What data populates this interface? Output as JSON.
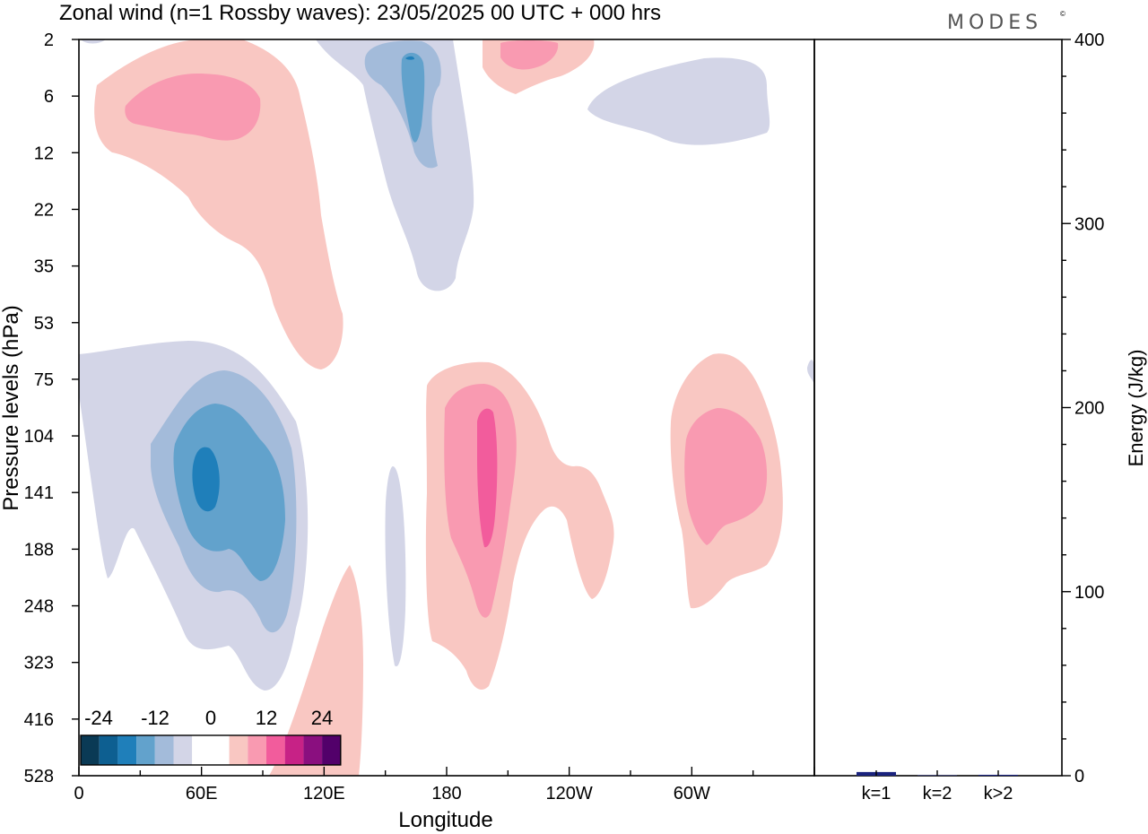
{
  "title": "Zonal wind (n=1 Rossby waves):  23/05/2025  00 UTC  + 000 hrs",
  "logo": "MODES",
  "logo_mark": "©",
  "colors": {
    "neg": [
      "#0a3a55",
      "#0d5f91",
      "#1f7fba",
      "#62a2cc",
      "#a3bbda",
      "#d3d5e7"
    ],
    "zero": "#ffffff",
    "pos": [
      "#f9c7c2",
      "#f99ab1",
      "#f25c9c",
      "#c72286",
      "#8a0f7f",
      "#52006a"
    ],
    "energy_bar": "#1a237e"
  },
  "chart_data": [
    {
      "type": "heatmap",
      "title": "Zonal wind (n=1 Rossby waves):  23/05/2025  00 UTC  + 000 hrs",
      "xlabel": "Longitude",
      "ylabel": "Pressure levels (hPa)",
      "x_ticks": [
        "0",
        "60E",
        "120E",
        "180",
        "120W",
        "60W"
      ],
      "x_tick_degrees": [
        0,
        60,
        120,
        180,
        240,
        300
      ],
      "xlim": [
        0,
        360
      ],
      "y_ticks": [
        "2",
        "6",
        "12",
        "22",
        "35",
        "53",
        "75",
        "104",
        "141",
        "188",
        "248",
        "323",
        "416",
        "528"
      ],
      "y_scale": "log (pressure levels, top = 2 hPa)",
      "colorbar": {
        "labels": [
          "-24",
          "-12",
          "0",
          "12",
          "24"
        ],
        "levels": [
          -30,
          -27,
          -24,
          -21,
          -18,
          -15,
          -12,
          -9,
          -6,
          -3,
          3,
          6,
          9,
          12,
          15,
          18,
          21,
          24,
          27,
          30
        ],
        "placement": "bottom-left, inside plot"
      },
      "features": [
        {
          "sign": "negative",
          "center_lon": 62,
          "center_hPa": 130,
          "min_value": -24
        },
        {
          "sign": "positive",
          "center_lon": 197,
          "center_hPa": 141,
          "max_value": 12
        },
        {
          "sign": "positive",
          "center_lon": 300,
          "center_hPa": 141,
          "max_value": 9
        },
        {
          "sign": "positive",
          "center_lon": 70,
          "center_hPa": 7,
          "max_value": 9
        },
        {
          "sign": "negative",
          "center_lon": 165,
          "center_hPa": 6,
          "min_value": -9
        },
        {
          "sign": "positive",
          "center_lon": 220,
          "center_hPa": 3,
          "max_value": 9
        },
        {
          "sign": "negative",
          "center_lon": 300,
          "center_hPa": 8,
          "min_value": -3
        },
        {
          "sign": "positive",
          "center_lon": 135,
          "center_hPa": 330,
          "max_value": 6
        },
        {
          "sign": "negative",
          "center_lon": 155,
          "center_hPa": 210,
          "min_value": -3
        }
      ]
    },
    {
      "type": "bar",
      "ylabel": "Energy (J/kg)",
      "categories": [
        "k=1",
        "k=2",
        "k>2"
      ],
      "values": [
        2,
        0,
        0.5
      ],
      "ylim": [
        0,
        400
      ],
      "y_ticks": [
        "0",
        "100",
        "200",
        "300",
        "400"
      ]
    }
  ]
}
